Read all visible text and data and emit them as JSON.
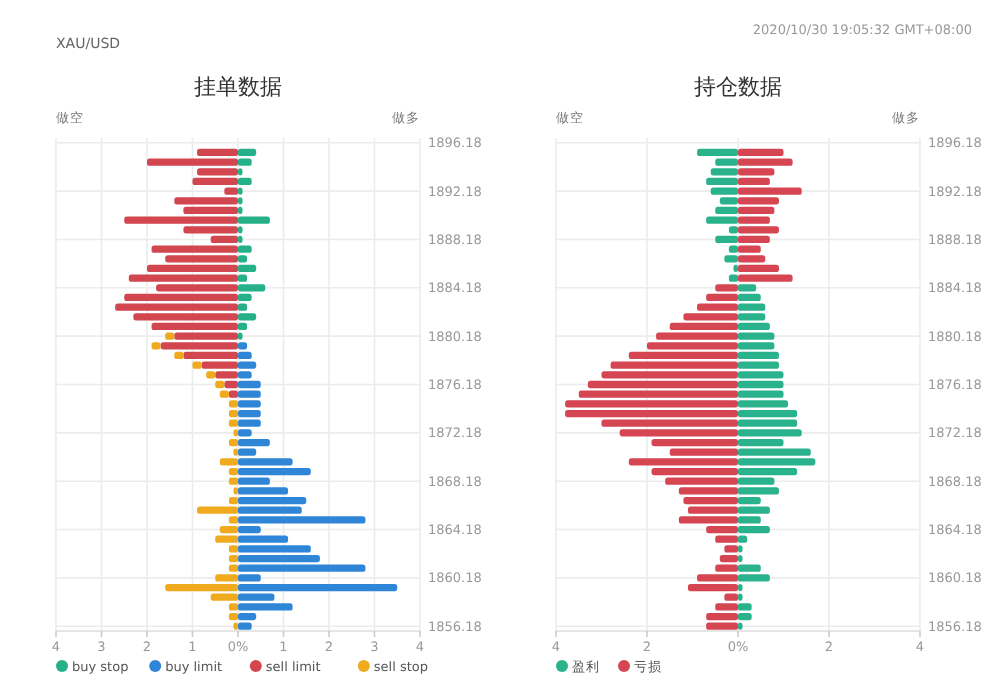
{
  "chart_data": [
    {
      "type": "bar",
      "orientation": "horizontal",
      "stacked": true,
      "title": "挂单数据",
      "annotations": [
        "做空",
        "做多",
        "XAU/USD"
      ],
      "categories": [
        "1896.18",
        null,
        null,
        null,
        null,
        "1892.18",
        null,
        null,
        null,
        null,
        "1888.18",
        null,
        null,
        null,
        null,
        "1884.18",
        null,
        null,
        null,
        null,
        "1880.18",
        null,
        null,
        null,
        null,
        "1876.18",
        null,
        null,
        null,
        null,
        "1872.18",
        null,
        null,
        null,
        null,
        "1868.18",
        null,
        null,
        null,
        null,
        "1864.18",
        null,
        null,
        null,
        null,
        "1860.18",
        null,
        null,
        null,
        null,
        "1856.18"
      ],
      "xlim": [
        -4,
        4
      ],
      "xticks": [
        {
          "value": -4,
          "label": "4"
        },
        {
          "value": -3,
          "label": "3"
        },
        {
          "value": -2,
          "label": "2"
        },
        {
          "value": -1,
          "label": "1"
        },
        {
          "value": 0,
          "label": "0%"
        },
        1,
        2,
        3,
        4
      ],
      "grid": true,
      "legend": "bottom left",
      "series": [
        {
          "name": "buy stop",
          "color": "#26b08a",
          "values": [
            null,
            0.4,
            0.3,
            0.1,
            0.3,
            0.1,
            0.1,
            0.1,
            0.7,
            0.1,
            0.1,
            0.3,
            0.2,
            0.4,
            0.2,
            0.6,
            0.3,
            0.2,
            0.4,
            0.2,
            0.1,
            null,
            null,
            null,
            null,
            null,
            null,
            null,
            null,
            null,
            null,
            null,
            null,
            null,
            null,
            null,
            null,
            null,
            null,
            null,
            null,
            null,
            null,
            null,
            null,
            null,
            null,
            null,
            null,
            null,
            null
          ]
        },
        {
          "name": "buy limit",
          "color": "#2f86d6",
          "values": [
            null,
            null,
            null,
            null,
            null,
            null,
            null,
            null,
            null,
            null,
            null,
            null,
            null,
            null,
            null,
            null,
            null,
            null,
            null,
            null,
            null,
            0.2,
            0.3,
            0.4,
            0.3,
            0.5,
            0.5,
            0.5,
            0.5,
            0.5,
            0.3,
            0.7,
            0.4,
            1.2,
            1.6,
            0.7,
            1.1,
            1.5,
            1.4,
            2.8,
            0.5,
            1.1,
            1.6,
            1.8,
            2.8,
            0.5,
            3.5,
            0.8,
            1.2,
            0.4,
            0.3
          ]
        },
        {
          "name": "sell limit",
          "color": "#d2464f",
          "values": [
            null,
            -0.9,
            -2.0,
            -0.9,
            -1.0,
            -0.3,
            -1.4,
            -1.2,
            -2.5,
            -1.2,
            -0.6,
            -1.9,
            -1.6,
            -2.0,
            -2.4,
            -1.8,
            -2.5,
            -2.7,
            -2.3,
            -1.9,
            -1.4,
            -1.7,
            -1.2,
            -0.8,
            -0.5,
            -0.3,
            -0.2,
            null,
            null,
            null,
            null,
            null,
            null,
            null,
            null,
            null,
            null,
            null,
            null,
            null,
            null,
            null,
            null,
            null,
            null,
            null,
            null,
            null,
            null,
            null,
            null
          ]
        },
        {
          "name": "sell stop",
          "color": "#f0aa1e",
          "values": [
            null,
            null,
            null,
            null,
            null,
            null,
            null,
            null,
            null,
            null,
            null,
            null,
            null,
            null,
            null,
            null,
            null,
            null,
            null,
            null,
            -0.2,
            -0.2,
            -0.2,
            -0.2,
            -0.2,
            -0.2,
            -0.2,
            -0.2,
            -0.2,
            -0.2,
            -0.1,
            -0.2,
            -0.1,
            -0.4,
            -0.2,
            -0.2,
            -0.1,
            -0.2,
            -0.9,
            -0.2,
            -0.4,
            -0.5,
            -0.2,
            -0.2,
            -0.2,
            -0.5,
            -1.6,
            -0.6,
            -0.2,
            -0.2,
            -0.1
          ]
        }
      ]
    },
    {
      "type": "bar",
      "orientation": "horizontal",
      "stacked": true,
      "title": "持仓数据",
      "annotations": [
        "做空",
        "做多",
        "2020/10/30 19:05:32 GMT+08:00"
      ],
      "categories": [
        "1896.18",
        null,
        null,
        null,
        null,
        "1892.18",
        null,
        null,
        null,
        null,
        "1888.18",
        null,
        null,
        null,
        null,
        "1884.18",
        null,
        null,
        null,
        null,
        "1880.18",
        null,
        null,
        null,
        null,
        "1876.18",
        null,
        null,
        null,
        null,
        "1872.18",
        null,
        null,
        null,
        null,
        "1868.18",
        null,
        null,
        null,
        null,
        "1864.18",
        null,
        null,
        null,
        null,
        "1860.18",
        null,
        null,
        null,
        null,
        "1856.18"
      ],
      "xlim": [
        -4,
        4
      ],
      "xticks": [
        {
          "value": -4,
          "label": "4"
        },
        {
          "value": -2,
          "label": "2"
        },
        {
          "value": 0,
          "label": "0%"
        },
        2,
        4
      ],
      "grid": true,
      "legend": "bottom left",
      "series": [
        {
          "name": "盈利",
          "color": "#2ab28d",
          "values": [
            null,
            -0.9,
            -0.5,
            -0.6,
            -0.7,
            -0.6,
            -0.4,
            -0.5,
            -0.7,
            -0.2,
            -0.5,
            -0.2,
            -0.3,
            -0.1,
            -0.2,
            0.4,
            0.5,
            0.6,
            0.6,
            0.7,
            0.8,
            0.8,
            0.9,
            0.9,
            1.0,
            1.0,
            1.0,
            1.1,
            1.3,
            1.3,
            1.4,
            1.0,
            1.6,
            1.7,
            1.3,
            0.8,
            0.9,
            0.5,
            0.7,
            0.5,
            0.7,
            0.2,
            0.1,
            0.1,
            0.5,
            0.7,
            0.1,
            0.1,
            0.3,
            0.3,
            0.1
          ]
        },
        {
          "name": "亏损",
          "color": "#d54552",
          "values": [
            null,
            1.0,
            1.2,
            0.8,
            0.7,
            1.4,
            0.9,
            0.8,
            0.7,
            0.9,
            0.7,
            0.5,
            0.6,
            0.9,
            1.2,
            -0.5,
            -0.7,
            -0.9,
            -1.2,
            -1.5,
            -1.8,
            -2.0,
            -2.4,
            -2.8,
            -3.0,
            -3.3,
            -3.5,
            -3.8,
            -3.8,
            -3.0,
            -2.6,
            -1.9,
            -1.5,
            -2.4,
            -1.9,
            -1.6,
            -1.3,
            -1.2,
            -1.1,
            -1.3,
            -0.7,
            -0.5,
            -0.3,
            -0.4,
            -0.5,
            -0.9,
            -1.1,
            -0.3,
            -0.5,
            -0.7,
            -0.7
          ]
        }
      ]
    }
  ]
}
